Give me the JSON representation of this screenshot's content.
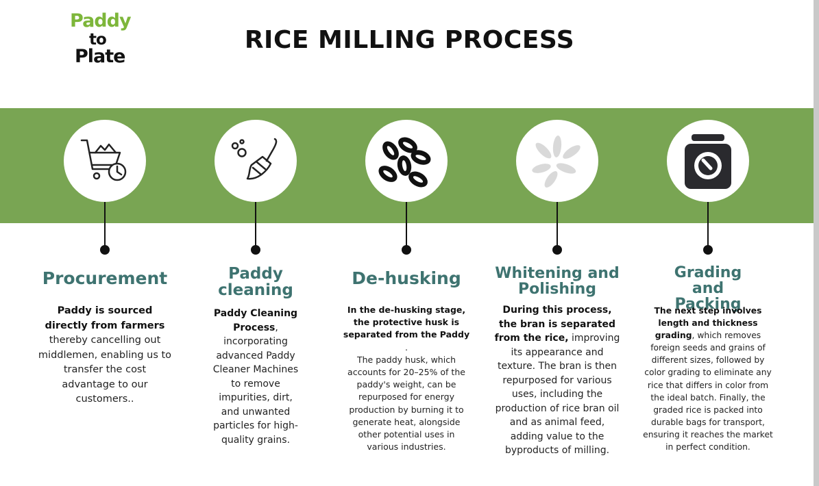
{
  "logo": {
    "line1": "Paddy",
    "line2": "to",
    "line3": "Plate"
  },
  "title": "RICE MILLING PROCESS",
  "colors": {
    "band": "#79a553",
    "heading": "#3e7370",
    "logo_green": "#7db63a"
  },
  "steps": [
    {
      "icon": "cart-clock-icon",
      "heading": "Procurement",
      "bold": "Paddy is sourced directly from farmers",
      "text": " thereby cancelling out middlemen, enabling us to transfer the cost advantage to our customers.."
    },
    {
      "icon": "broom-icon",
      "heading": "Paddy cleaning",
      "bold": "Paddy Cleaning Process",
      "text": ", incorporating advanced Paddy Cleaner Machines to remove impurities, dirt, and unwanted particles for high-quality grains."
    },
    {
      "icon": "rice-grains-dark-icon",
      "heading": "De-husking",
      "bold": "In the de-husking stage, the protective husk is separated from the Paddy",
      "text": " .",
      "text2": "The paddy husk, which accounts for 20–25% of the paddy's weight, can be repurposed for energy production by burning it to generate heat, alongside other potential uses in various industries."
    },
    {
      "icon": "rice-grains-light-icon",
      "heading": "Whitening and Polishing",
      "bold": "During this process, the bran is separated from the rice,",
      "text": " improving its appearance and texture. The bran is then repurposed for various uses, including the production of rice bran oil and as animal feed, adding value to the byproducts of milling."
    },
    {
      "icon": "weighing-scale-icon",
      "heading": "Grading and Packing",
      "bold": "The next step involves length and thickness grading",
      "text": ", which removes foreign seeds and grains of different sizes, followed by color grading to eliminate any rice that differs in color from the ideal batch. Finally, the graded rice is packed into durable bags for transport, ensuring it reaches the market in perfect condition."
    }
  ]
}
